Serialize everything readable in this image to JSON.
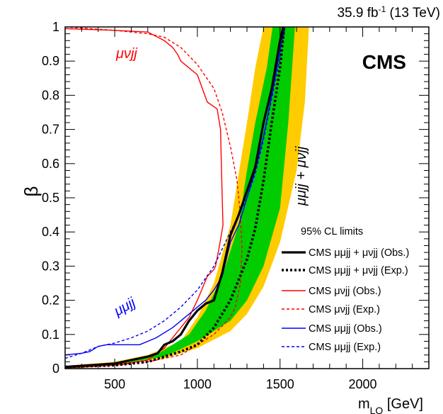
{
  "header": {
    "lumi_text": "35.9 fb",
    "lumi_sup": "-1",
    "energy_text": " (13 TeV)"
  },
  "experiment_label": "CMS",
  "chart_data": {
    "type": "line",
    "xlabel": "m",
    "xlabel_sub": "LQ",
    "xlabel_unit": " [GeV]",
    "ylabel": "β",
    "xlim": [
      200,
      2400
    ],
    "ylim": [
      0,
      1
    ],
    "x_ticks": [
      500,
      1000,
      1500,
      2000
    ],
    "y_ticks": [
      0,
      0.1,
      0.2,
      0.3,
      0.4,
      0.5,
      0.6,
      0.7,
      0.8,
      0.9,
      1
    ],
    "y_tick_labels": [
      "0",
      "0.1",
      "0.2",
      "0.3",
      "0.4",
      "0.5",
      "0.6",
      "0.7",
      "0.8",
      "0.9",
      "1"
    ],
    "grid": false,
    "legend": {
      "title": "95% CL limits",
      "placement": "bottom-right",
      "entries": [
        {
          "label": "CMS μμjj + μνjj (Obs.)",
          "color": "#000000",
          "style": "solid-thick"
        },
        {
          "label": "CMS μμjj + μνjj (Exp.)",
          "color": "#000000",
          "style": "dotted-thick"
        },
        {
          "label": "CMS μνjj (Obs.)",
          "color": "#ff0000",
          "style": "solid"
        },
        {
          "label": "CMS μνjj (Exp.)",
          "color": "#ff0000",
          "style": "dashed"
        },
        {
          "label": "CMS μμjj (Obs.)",
          "color": "#0000ff",
          "style": "solid"
        },
        {
          "label": "CMS μμjj (Exp.)",
          "color": "#0000ff",
          "style": "dashed"
        }
      ]
    },
    "annotations": [
      {
        "text": "μνjj",
        "color": "#ff0000"
      },
      {
        "text": "μμjj",
        "color": "#0000ff"
      },
      {
        "text": "μμjj + μνjj",
        "color": "#000000"
      }
    ],
    "bands": [
      {
        "name": "±2σ",
        "color": "#ffcc00",
        "lower": [
          [
            250,
            0
          ],
          [
            500,
            0.01
          ],
          [
            800,
            0.03
          ],
          [
            1000,
            0.06
          ],
          [
            1200,
            0.11
          ],
          [
            1300,
            0.16
          ],
          [
            1400,
            0.24
          ],
          [
            1500,
            0.37
          ],
          [
            1600,
            0.58
          ],
          [
            1650,
            0.78
          ],
          [
            1675,
            1.0
          ]
        ],
        "upper": [
          [
            250,
            0.01
          ],
          [
            500,
            0.02
          ],
          [
            700,
            0.04
          ],
          [
            900,
            0.08
          ],
          [
            1000,
            0.15
          ],
          [
            1100,
            0.25
          ],
          [
            1200,
            0.42
          ],
          [
            1250,
            0.57
          ],
          [
            1300,
            0.72
          ],
          [
            1350,
            0.88
          ],
          [
            1400,
            1.0
          ]
        ]
      },
      {
        "name": "±1σ",
        "color": "#00cc00",
        "lower": [
          [
            250,
            0.005
          ],
          [
            500,
            0.012
          ],
          [
            800,
            0.035
          ],
          [
            1000,
            0.08
          ],
          [
            1200,
            0.14
          ],
          [
            1300,
            0.2
          ],
          [
            1400,
            0.3
          ],
          [
            1500,
            0.47
          ],
          [
            1550,
            0.72
          ],
          [
            1590,
            1.0
          ]
        ],
        "upper": [
          [
            250,
            0.008
          ],
          [
            500,
            0.018
          ],
          [
            750,
            0.04
          ],
          [
            950,
            0.1
          ],
          [
            1050,
            0.17
          ],
          [
            1150,
            0.27
          ],
          [
            1250,
            0.42
          ],
          [
            1300,
            0.58
          ],
          [
            1350,
            0.72
          ],
          [
            1420,
            0.88
          ],
          [
            1455,
            1.0
          ]
        ]
      }
    ],
    "series": [
      {
        "name": "CMS μμjj + μνjj (Obs.)",
        "color": "#000000",
        "dash": "",
        "width": 3.2,
        "points": [
          [
            200,
            0.005
          ],
          [
            500,
            0.015
          ],
          [
            700,
            0.035
          ],
          [
            760,
            0.045
          ],
          [
            800,
            0.07
          ],
          [
            850,
            0.08
          ],
          [
            900,
            0.1
          ],
          [
            950,
            0.14
          ],
          [
            1000,
            0.17
          ],
          [
            1050,
            0.19
          ],
          [
            1100,
            0.2
          ],
          [
            1150,
            0.28
          ],
          [
            1200,
            0.39
          ],
          [
            1250,
            0.45
          ],
          [
            1300,
            0.52
          ],
          [
            1350,
            0.59
          ],
          [
            1400,
            0.72
          ],
          [
            1450,
            0.82
          ],
          [
            1500,
            0.96
          ],
          [
            1520,
            1.0
          ]
        ]
      },
      {
        "name": "CMS μμjj + μνjj (Exp.)",
        "color": "#000000",
        "dash": "3,3",
        "width": 3.6,
        "points": [
          [
            200,
            0.005
          ],
          [
            500,
            0.01
          ],
          [
            700,
            0.02
          ],
          [
            900,
            0.05
          ],
          [
            1000,
            0.07
          ],
          [
            1100,
            0.12
          ],
          [
            1200,
            0.2
          ],
          [
            1300,
            0.32
          ],
          [
            1350,
            0.41
          ],
          [
            1400,
            0.55
          ],
          [
            1450,
            0.72
          ],
          [
            1500,
            0.88
          ],
          [
            1525,
            1.0
          ]
        ]
      },
      {
        "name": "CMS μνjj (Obs.)",
        "color": "#ff0000",
        "dash": "",
        "width": 1.4,
        "points": [
          [
            200,
            0.995
          ],
          [
            500,
            0.99
          ],
          [
            700,
            0.985
          ],
          [
            800,
            0.96
          ],
          [
            850,
            0.94
          ],
          [
            880,
            0.92
          ],
          [
            900,
            0.9
          ],
          [
            950,
            0.88
          ],
          [
            1000,
            0.86
          ],
          [
            1030,
            0.82
          ],
          [
            1060,
            0.78
          ],
          [
            1120,
            0.76
          ],
          [
            1140,
            0.7
          ],
          [
            1150,
            0.5
          ],
          [
            1155,
            0.42
          ],
          [
            1130,
            0.35
          ],
          [
            1110,
            0.3
          ],
          [
            1100,
            0.29
          ],
          [
            1060,
            0.27
          ],
          [
            1000,
            0.2
          ],
          [
            950,
            0.15
          ],
          [
            900,
            0.12
          ],
          [
            850,
            0.09
          ],
          [
            800,
            0.06
          ],
          [
            700,
            0.025
          ],
          [
            500,
            0.01
          ],
          [
            200,
            0.002
          ]
        ]
      },
      {
        "name": "CMS μνjj (Exp.)",
        "color": "#ff0000",
        "dash": "4,3",
        "width": 1.4,
        "points": [
          [
            200,
            1.0
          ],
          [
            500,
            0.99
          ],
          [
            700,
            0.98
          ],
          [
            800,
            0.97
          ],
          [
            900,
            0.94
          ],
          [
            1000,
            0.89
          ],
          [
            1100,
            0.82
          ],
          [
            1150,
            0.75
          ],
          [
            1200,
            0.65
          ],
          [
            1240,
            0.55
          ],
          [
            1260,
            0.45
          ],
          [
            1270,
            0.35
          ],
          [
            1260,
            0.25
          ],
          [
            1230,
            0.18
          ],
          [
            1200,
            0.15
          ],
          [
            1100,
            0.1
          ],
          [
            1000,
            0.07
          ],
          [
            900,
            0.04
          ],
          [
            700,
            0.02
          ],
          [
            500,
            0.01
          ],
          [
            200,
            0.002
          ]
        ]
      },
      {
        "name": "CMS μμjj (Obs.)",
        "color": "#0000ff",
        "dash": "",
        "width": 1.4,
        "points": [
          [
            200,
            0.04
          ],
          [
            300,
            0.045
          ],
          [
            350,
            0.05
          ],
          [
            400,
            0.065
          ],
          [
            450,
            0.07
          ],
          [
            550,
            0.07
          ],
          [
            650,
            0.07
          ],
          [
            750,
            0.09
          ],
          [
            850,
            0.12
          ],
          [
            950,
            0.16
          ],
          [
            1050,
            0.2
          ],
          [
            1100,
            0.23
          ],
          [
            1150,
            0.27
          ],
          [
            1200,
            0.37
          ],
          [
            1250,
            0.42
          ],
          [
            1300,
            0.5
          ],
          [
            1350,
            0.58
          ],
          [
            1400,
            0.68
          ],
          [
            1450,
            0.8
          ],
          [
            1500,
            0.93
          ],
          [
            1525,
            1.0
          ]
        ]
      },
      {
        "name": "CMS μμjj (Exp.)",
        "color": "#0000ff",
        "dash": "4,3",
        "width": 1.4,
        "points": [
          [
            200,
            0.03
          ],
          [
            300,
            0.045
          ],
          [
            400,
            0.065
          ],
          [
            500,
            0.075
          ],
          [
            600,
            0.09
          ],
          [
            700,
            0.11
          ],
          [
            800,
            0.14
          ],
          [
            900,
            0.18
          ],
          [
            1000,
            0.23
          ],
          [
            1100,
            0.3
          ],
          [
            1150,
            0.35
          ],
          [
            1200,
            0.4
          ],
          [
            1250,
            0.45
          ],
          [
            1300,
            0.5
          ],
          [
            1350,
            0.57
          ],
          [
            1400,
            0.67
          ],
          [
            1450,
            0.79
          ],
          [
            1500,
            0.91
          ],
          [
            1530,
            1.0
          ]
        ]
      }
    ]
  }
}
